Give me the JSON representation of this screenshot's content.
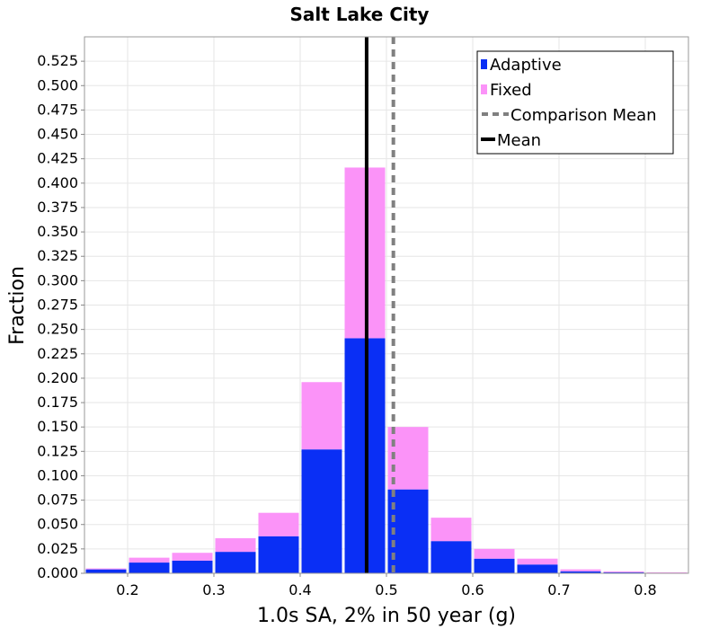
{
  "chart_data": {
    "type": "bar",
    "title": "Salt Lake City",
    "xlabel": "1.0s SA, 2% in 50 year (g)",
    "ylabel": "Fraction",
    "xlim": [
      0.15,
      0.85
    ],
    "ylim": [
      0,
      0.55
    ],
    "xticks": [
      "0.2",
      "0.3",
      "0.4",
      "0.5",
      "0.6",
      "0.7",
      "0.8"
    ],
    "yticks": [
      "0.000",
      "0.025",
      "0.050",
      "0.075",
      "0.100",
      "0.125",
      "0.150",
      "0.175",
      "0.200",
      "0.225",
      "0.250",
      "0.275",
      "0.300",
      "0.325",
      "0.350",
      "0.375",
      "0.400",
      "0.425",
      "0.450",
      "0.475",
      "0.500",
      "0.525"
    ],
    "bin_width": 0.05,
    "bins": [
      0.175,
      0.225,
      0.275,
      0.325,
      0.375,
      0.425,
      0.475,
      0.525,
      0.575,
      0.625,
      0.675,
      0.725,
      0.775,
      0.825
    ],
    "stacked": true,
    "series": [
      {
        "name": "Adaptive",
        "color": "#0a2ff5",
        "values": [
          0.004,
          0.011,
          0.013,
          0.022,
          0.038,
          0.127,
          0.241,
          0.086,
          0.033,
          0.015,
          0.009,
          0.002,
          0.001,
          0.0005
        ]
      },
      {
        "name": "Fixed",
        "color": "#fb93f8",
        "values": [
          0.001,
          0.005,
          0.008,
          0.014,
          0.024,
          0.069,
          0.175,
          0.064,
          0.024,
          0.01,
          0.006,
          0.002,
          0.001,
          0.0005
        ]
      }
    ],
    "lines": [
      {
        "name": "Comparison Mean",
        "x": 0.508,
        "color": "#808080",
        "style": "dashed"
      },
      {
        "name": "Mean",
        "x": 0.477,
        "color": "#000000",
        "style": "solid"
      }
    ],
    "legend": [
      "Adaptive",
      "Fixed",
      "Comparison Mean",
      "Mean"
    ],
    "legend_placement": "top-right",
    "grid": true
  }
}
